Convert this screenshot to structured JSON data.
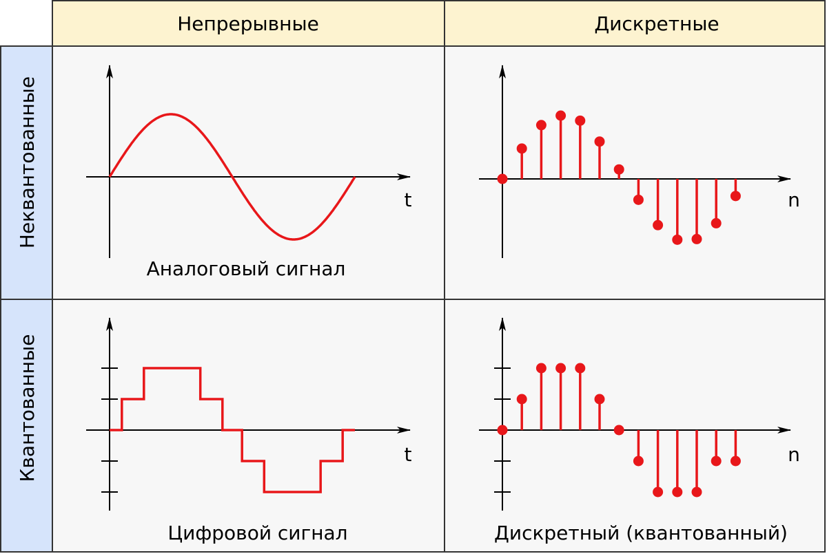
{
  "header": {
    "col_continuous": "Непрерывные",
    "col_discrete": "Дискретные",
    "row_unquantized": "Неквантованные",
    "row_quantized": "Квантованные"
  },
  "panels": {
    "analog": {
      "caption": "Аналоговый сигнал",
      "axis_label": "t"
    },
    "sampled": {
      "caption": "",
      "axis_label": "n"
    },
    "digital": {
      "caption": "Цифровой сигнал",
      "axis_label": "t"
    },
    "discrete_quantized": {
      "caption": "Дискретный (квантованный)",
      "axis_label": "n"
    }
  },
  "colors": {
    "header_bg": "#fdf3d0",
    "row_header_bg": "#d6e4fb",
    "panel_bg": "#f7f7f7",
    "signal": "#e8171a",
    "grid_line": "#333333"
  },
  "chart_data": [
    {
      "type": "line",
      "panel": "analog",
      "function": "sine, one full period",
      "x": [
        0,
        0.25,
        0.5,
        0.75,
        1.0
      ],
      "y": [
        0,
        1,
        0,
        -1,
        0
      ]
    },
    {
      "type": "scatter",
      "panel": "sampled",
      "stem": true,
      "x": [
        0,
        1,
        2,
        3,
        4,
        5,
        6,
        7,
        8,
        9,
        10,
        11,
        12
      ],
      "y": [
        0,
        0.48,
        0.85,
        1.0,
        0.92,
        0.59,
        0.15,
        -0.33,
        -0.73,
        -0.96,
        -0.95,
        -0.7,
        -0.27
      ]
    },
    {
      "type": "line",
      "panel": "digital",
      "step": true,
      "levels": [
        -2,
        -1,
        0,
        1,
        2
      ],
      "x": [
        0,
        0.05,
        0.14,
        0.37,
        0.46,
        0.54,
        0.63,
        0.86,
        0.95,
        1.0
      ],
      "y": [
        0,
        1,
        2,
        1,
        0,
        -1,
        -2,
        -1,
        0,
        0
      ]
    },
    {
      "type": "scatter",
      "panel": "discrete_quantized",
      "stem": true,
      "levels": [
        -2,
        -1,
        0,
        1,
        2
      ],
      "x": [
        0,
        1,
        2,
        3,
        4,
        5,
        6,
        7,
        8,
        9,
        10,
        11,
        12
      ],
      "y": [
        0,
        1,
        2,
        2,
        2,
        1,
        0,
        -1,
        -2,
        -2,
        -2,
        -1,
        -1
      ]
    }
  ]
}
